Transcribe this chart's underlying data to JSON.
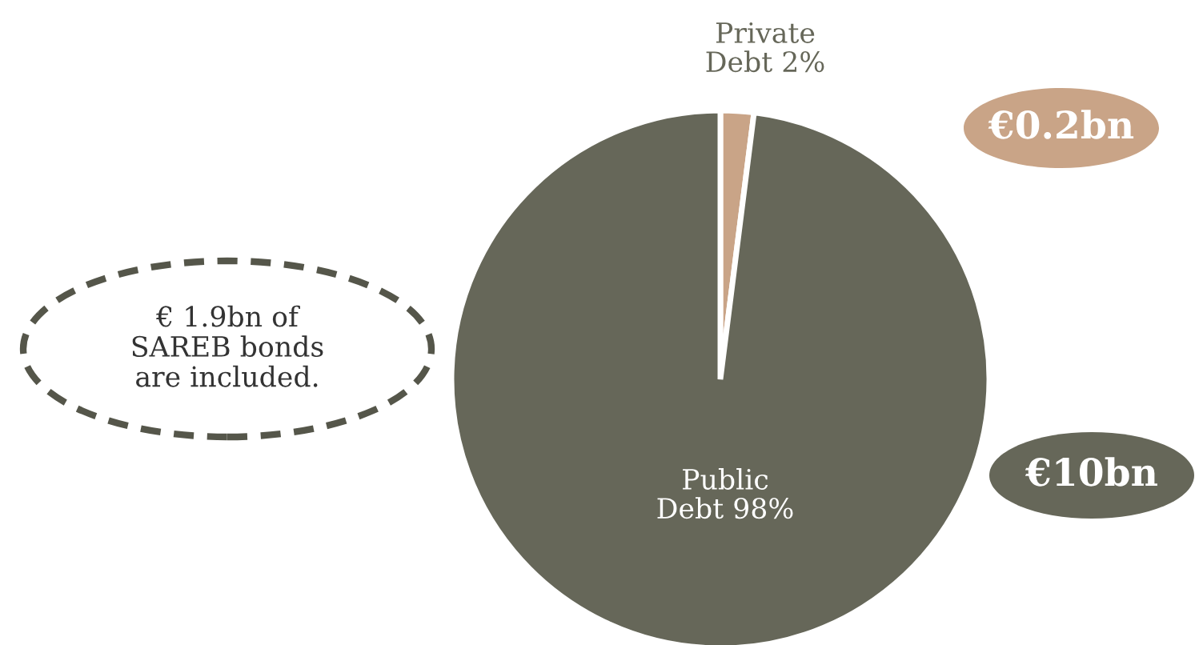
{
  "chart_data": {
    "type": "pie",
    "categories": [
      "Private Debt 2%",
      "Public Debt 98%"
    ],
    "values": [
      2,
      98
    ],
    "colors": [
      "#c9a487",
      "#666759"
    ],
    "annotations": [
      "€0.2bn",
      "€10bn",
      "€ 1.9bn of\nSAREB bonds\nare included."
    ],
    "legend": false
  }
}
